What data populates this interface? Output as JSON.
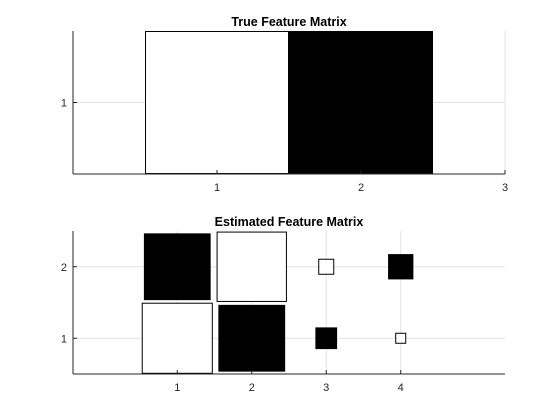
{
  "figure": {
    "background": "#ffffff",
    "axis_color": "#262626",
    "grid_color": "#e3e3e3"
  },
  "chart_data": [
    {
      "type": "heatmap",
      "style": "hinton",
      "title": "True Feature Matrix",
      "xlim": [
        0,
        3
      ],
      "ylim": [
        0,
        2
      ],
      "xticks": [
        1,
        2,
        3
      ],
      "yticks": [
        1
      ],
      "grid": true,
      "cells": [
        {
          "x": 1,
          "y": 1,
          "value": 1.0,
          "color": "white"
        },
        {
          "x": 2,
          "y": 1,
          "value": 1.0,
          "color": "black"
        }
      ]
    },
    {
      "type": "heatmap",
      "style": "hinton",
      "title": "Estimated Feature Matrix",
      "xlim": [
        -0.4,
        5.4
      ],
      "ylim": [
        0.5,
        2.5
      ],
      "xticks": [
        1,
        2,
        3,
        4
      ],
      "yticks": [
        1,
        2
      ],
      "grid": true,
      "cells": [
        {
          "x": 1,
          "y": 2,
          "value": 0.92,
          "color": "black"
        },
        {
          "x": 2,
          "y": 2,
          "value": 0.97,
          "color": "white"
        },
        {
          "x": 3,
          "y": 2,
          "value": 0.21,
          "color": "white"
        },
        {
          "x": 4,
          "y": 2,
          "value": 0.34,
          "color": "black"
        },
        {
          "x": 1,
          "y": 1,
          "value": 0.98,
          "color": "white"
        },
        {
          "x": 2,
          "y": 1,
          "value": 0.92,
          "color": "black"
        },
        {
          "x": 3,
          "y": 1,
          "value": 0.29,
          "color": "black"
        },
        {
          "x": 4,
          "y": 1,
          "value": 0.14,
          "color": "white"
        }
      ]
    }
  ]
}
